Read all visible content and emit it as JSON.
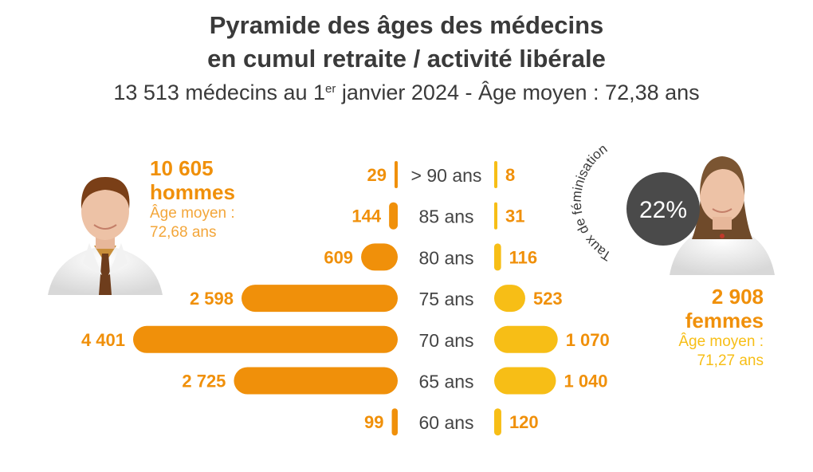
{
  "title": {
    "line1": "Pyramide des âges des médecins",
    "line2": "en cumul retraite / activité libérale"
  },
  "subtitle": {
    "before": "13 513 médecins au 1",
    "sup": "er",
    "after": " janvier 2024 - Âge moyen : 72,38 ans"
  },
  "men": {
    "count": "10 605",
    "label": "hommes",
    "avg_label": "Âge moyen :",
    "avg_value": "72,68 ans"
  },
  "women": {
    "count": "2 908",
    "label": "femmes",
    "avg_label": "Âge moyen :",
    "avg_value": "71,27 ans",
    "rate": "22%",
    "rate_caption": "Taux de féminisation"
  },
  "colors": {
    "men": "#f0900a",
    "women": "#f7be16",
    "age_text": "#444444",
    "badge": "#4a4a4a"
  },
  "chart_data": {
    "type": "bar",
    "orientation": "horizontal-pyramid",
    "categories": [
      "> 90 ans",
      "85 ans",
      "80 ans",
      "75 ans",
      "70 ans",
      "65 ans",
      "60 ans"
    ],
    "series": [
      {
        "name": "hommes",
        "values": [
          29,
          144,
          609,
          2598,
          4401,
          2725,
          99
        ],
        "labels": [
          "29",
          "144",
          "609",
          "2 598",
          "4 401",
          "2 725",
          "99"
        ]
      },
      {
        "name": "femmes",
        "values": [
          8,
          31,
          116,
          523,
          1070,
          1040,
          120
        ],
        "labels": [
          "8",
          "31",
          "116",
          "523",
          "1 070",
          "1 040",
          "120"
        ]
      }
    ]
  }
}
